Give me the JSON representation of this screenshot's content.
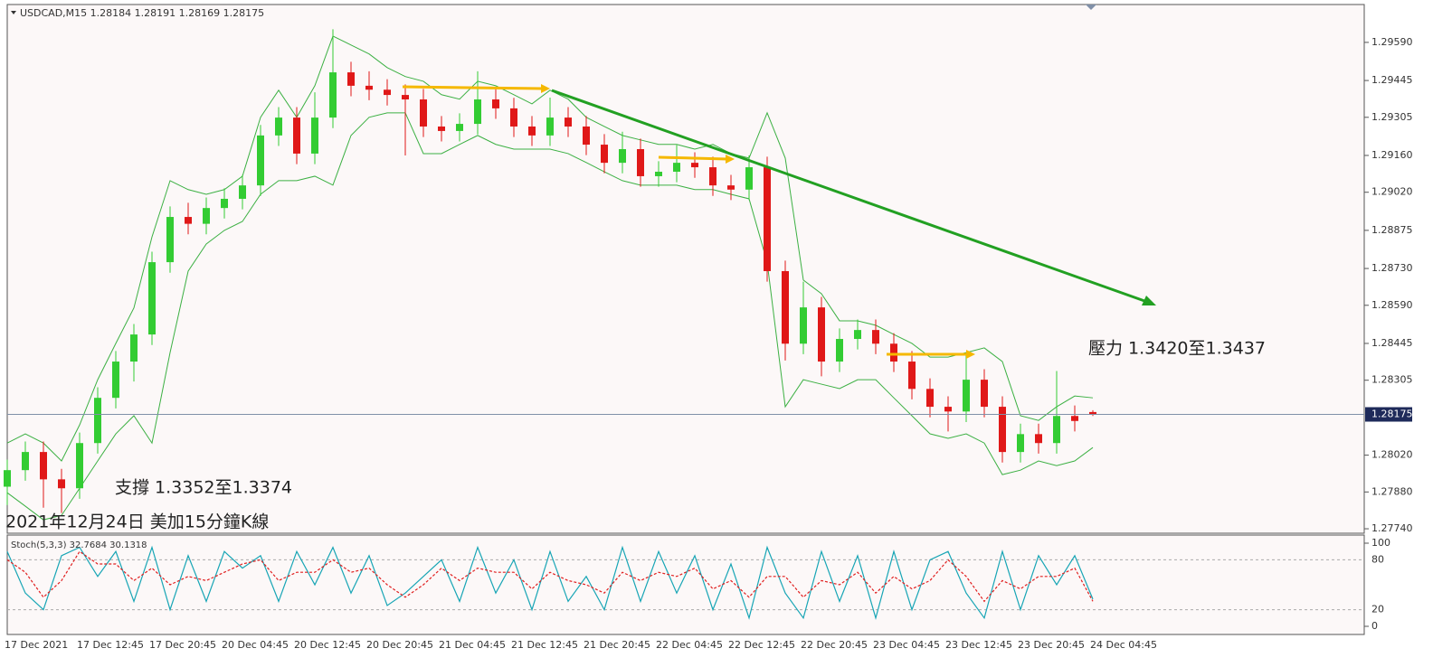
{
  "chart_data": [
    {
      "type": "candlestick",
      "title": "USDCAD,M15  1.28184 1.28191 1.28169 1.28175",
      "annotations": [
        "壓力 1.3420至1.3437",
        "支撐 1.3352至1.3374",
        "2021年12月24日 美加15分鐘K線"
      ],
      "categories": [
        "17 Dec 2021",
        null,
        null,
        null,
        "17 Dec 12:45",
        null,
        null,
        null,
        "17 Dec 20:45",
        null,
        null,
        null,
        "20 Dec 04:45",
        null,
        null,
        null,
        "20 Dec 12:45",
        null,
        null,
        null,
        "20 Dec 20:45",
        null,
        null,
        null,
        "21 Dec 04:45",
        null,
        null,
        null,
        "21 Dec 12:45",
        null,
        null,
        null,
        "21 Dec 20:45",
        null,
        null,
        null,
        "22 Dec 04:45",
        null,
        null,
        null,
        "22 Dec 12:45",
        null,
        null,
        null,
        "22 Dec 20:45",
        null,
        null,
        null,
        "23 Dec 04:45",
        null,
        null,
        null,
        "23 Dec 12:45",
        null,
        null,
        null,
        "23 Dec 20:45",
        null,
        null,
        null,
        "24 Dec 04:45"
      ],
      "open": [
        1.279,
        1.27963,
        1.28032,
        1.27928,
        1.27894,
        1.28066,
        1.28238,
        1.28376,
        1.28479,
        1.28754,
        1.28926,
        1.289,
        1.2896,
        1.28995,
        1.29046,
        1.29236,
        1.29304,
        1.29167,
        1.29304,
        1.29476,
        1.29425,
        1.2941,
        1.2939,
        1.29373,
        1.2927,
        1.29253,
        1.2928,
        1.29373,
        1.29339,
        1.2927,
        1.29236,
        1.29304,
        1.2927,
        1.29201,
        1.29132,
        1.29184,
        1.29081,
        1.29098,
        1.29132,
        1.29115,
        1.29046,
        1.2903,
        1.29115,
        1.2872,
        1.28444,
        1.28582,
        1.28376,
        1.28462,
        1.28496,
        1.28444,
        1.28376,
        1.28272,
        1.28204,
        1.28186,
        1.28307,
        1.28204,
        1.28032,
        1.281,
        1.28066,
        1.28169,
        1.28184
      ],
      "high": [
        1.28003,
        1.28072,
        1.28072,
        1.27968,
        1.28106,
        1.28278,
        1.28416,
        1.28519,
        1.28794,
        1.28966,
        1.2898,
        1.29,
        1.29035,
        1.29086,
        1.29276,
        1.29344,
        1.29344,
        1.294,
        1.2964,
        1.29516,
        1.2948,
        1.2945,
        1.2943,
        1.29413,
        1.2931,
        1.2932,
        1.2948,
        1.29413,
        1.29379,
        1.2931,
        1.2938,
        1.29344,
        1.2931,
        1.29241,
        1.2925,
        1.29224,
        1.29138,
        1.292,
        1.29172,
        1.29155,
        1.29086,
        1.2916,
        1.29155,
        1.2876,
        1.2868,
        1.28622,
        1.28502,
        1.28536,
        1.28536,
        1.28484,
        1.28416,
        1.28312,
        1.28244,
        1.284,
        1.28347,
        1.28244,
        1.2814,
        1.2814,
        1.2834,
        1.28209,
        1.28191
      ],
      "low": [
        1.2783,
        1.27923,
        1.2782,
        1.278,
        1.27854,
        1.28026,
        1.28198,
        1.283,
        1.28439,
        1.28714,
        1.2886,
        1.2886,
        1.2892,
        1.28955,
        1.29006,
        1.29196,
        1.29127,
        1.29127,
        1.29264,
        1.29385,
        1.2937,
        1.2935,
        1.2916,
        1.2923,
        1.29213,
        1.29213,
        1.2924,
        1.29299,
        1.2923,
        1.29196,
        1.29196,
        1.2923,
        1.29161,
        1.29092,
        1.29092,
        1.29041,
        1.29041,
        1.29058,
        1.29075,
        1.29006,
        1.2899,
        1.2899,
        1.2868,
        1.2838,
        1.28404,
        1.2832,
        1.28336,
        1.28422,
        1.28404,
        1.28336,
        1.28232,
        1.28164,
        1.2811,
        1.28146,
        1.28164,
        1.27992,
        1.27992,
        1.28026,
        1.28026,
        1.2811,
        1.28169
      ],
      "close": [
        1.27963,
        1.28032,
        1.27928,
        1.27894,
        1.28066,
        1.28238,
        1.28376,
        1.28479,
        1.28754,
        1.28926,
        1.289,
        1.2896,
        1.28995,
        1.29046,
        1.29236,
        1.29304,
        1.29167,
        1.29304,
        1.29476,
        1.29425,
        1.2941,
        1.2939,
        1.29373,
        1.2927,
        1.29253,
        1.2928,
        1.29373,
        1.29339,
        1.2927,
        1.29236,
        1.29304,
        1.2927,
        1.29201,
        1.29132,
        1.29184,
        1.29081,
        1.29098,
        1.29132,
        1.29115,
        1.29046,
        1.2903,
        1.29115,
        1.2872,
        1.28444,
        1.28582,
        1.28376,
        1.28462,
        1.28496,
        1.28444,
        1.28376,
        1.28272,
        1.28204,
        1.28186,
        1.28307,
        1.28204,
        1.28032,
        1.281,
        1.28066,
        1.28169,
        1.2815,
        1.28175
      ],
      "upper_band": [
        1.28066,
        1.28101,
        1.28066,
        1.27998,
        1.28135,
        1.28307,
        1.28445,
        1.2858,
        1.2885,
        1.29064,
        1.2903,
        1.29012,
        1.2903,
        1.29081,
        1.29305,
        1.29408,
        1.29305,
        1.29425,
        1.29614,
        1.2958,
        1.29546,
        1.29494,
        1.2946,
        1.29442,
        1.29391,
        1.29374,
        1.29442,
        1.29425,
        1.29391,
        1.29356,
        1.29408,
        1.29374,
        1.29305,
        1.2927,
        1.29236,
        1.29219,
        1.29202,
        1.29202,
        1.29184,
        1.29202,
        1.29167,
        1.2915,
        1.29322,
        1.2915,
        1.28686,
        1.28634,
        1.28531,
        1.28531,
        1.28514,
        1.28479,
        1.28445,
        1.28393,
        1.28393,
        1.2841,
        1.28428,
        1.28376,
        1.2817,
        1.28152,
        1.28204,
        1.28245,
        1.28238
      ],
      "lower_band": [
        1.27877,
        1.27826,
        1.27774,
        1.27791,
        1.27894,
        1.27998,
        1.28101,
        1.2817,
        1.28066,
        1.2841,
        1.2872,
        1.28823,
        1.28875,
        1.28909,
        1.29012,
        1.29064,
        1.29064,
        1.29081,
        1.29047,
        1.29236,
        1.29305,
        1.29322,
        1.29322,
        1.29167,
        1.29167,
        1.29202,
        1.29236,
        1.29202,
        1.29184,
        1.29184,
        1.29184,
        1.29167,
        1.29133,
        1.29098,
        1.29064,
        1.29047,
        1.29047,
        1.29047,
        1.2903,
        1.2903,
        1.29012,
        1.28995,
        1.28754,
        1.28204,
        1.28307,
        1.2829,
        1.28273,
        1.28307,
        1.28307,
        1.28238,
        1.2817,
        1.28101,
        1.28084,
        1.28101,
        1.28066,
        1.27946,
        1.27963,
        1.27998,
        1.2798,
        1.27998,
        1.28049
      ],
      "up_color": "#33cc33",
      "down_color": "#e01818",
      "band_color": "#3cb043",
      "ylim": [
        1.27723,
        1.29734
      ],
      "yticks": [
        {
          "value": 1.2959,
          "label": "1.29590"
        },
        1.29445,
        1.29305,
        {
          "value": 1.2916,
          "label": "1.29160"
        },
        {
          "value": 1.2902,
          "label": "1.29020"
        },
        1.28875,
        {
          "value": 1.2873,
          "label": "1.28730"
        },
        {
          "value": 1.2859,
          "label": "1.28590"
        },
        1.28445,
        1.28305,
        {
          "value": 1.2802,
          "label": "1.28020"
        },
        {
          "value": 1.2788,
          "label": "1.27880"
        },
        {
          "value": 1.2774,
          "label": "1.27740"
        }
      ],
      "last_price": 1.28175
    },
    {
      "type": "line",
      "title": "Stoch(5,3,3) 32.7684 30.1318",
      "series": [
        {
          "color": "#17a5b5",
          "dashed": false,
          "values": [
            90,
            40,
            20,
            85,
            95,
            60,
            90,
            30,
            95,
            20,
            85,
            30,
            90,
            70,
            85,
            30,
            90,
            50,
            95,
            40,
            85,
            25,
            40,
            60,
            80,
            30,
            95,
            40,
            80,
            20,
            90,
            30,
            60,
            20,
            95,
            30,
            90,
            40,
            85,
            20,
            75,
            10,
            95,
            40,
            10,
            90,
            30,
            85,
            10,
            90,
            20,
            80,
            90,
            40,
            10,
            90,
            20,
            85,
            50,
            85,
            32.7684
          ]
        },
        {
          "color": "#e02020",
          "dashed": true,
          "values": [
            80,
            65,
            35,
            55,
            90,
            75,
            75,
            55,
            70,
            50,
            60,
            55,
            65,
            75,
            80,
            55,
            65,
            65,
            80,
            65,
            70,
            50,
            35,
            50,
            70,
            55,
            70,
            65,
            65,
            45,
            65,
            55,
            50,
            40,
            65,
            55,
            65,
            60,
            70,
            45,
            55,
            35,
            60,
            60,
            35,
            55,
            50,
            65,
            40,
            60,
            45,
            55,
            80,
            60,
            30,
            55,
            45,
            60,
            60,
            70,
            30.1318
          ]
        }
      ],
      "ylim": [
        0,
        100
      ],
      "yticks": [
        100,
        80,
        20,
        0
      ]
    }
  ]
}
